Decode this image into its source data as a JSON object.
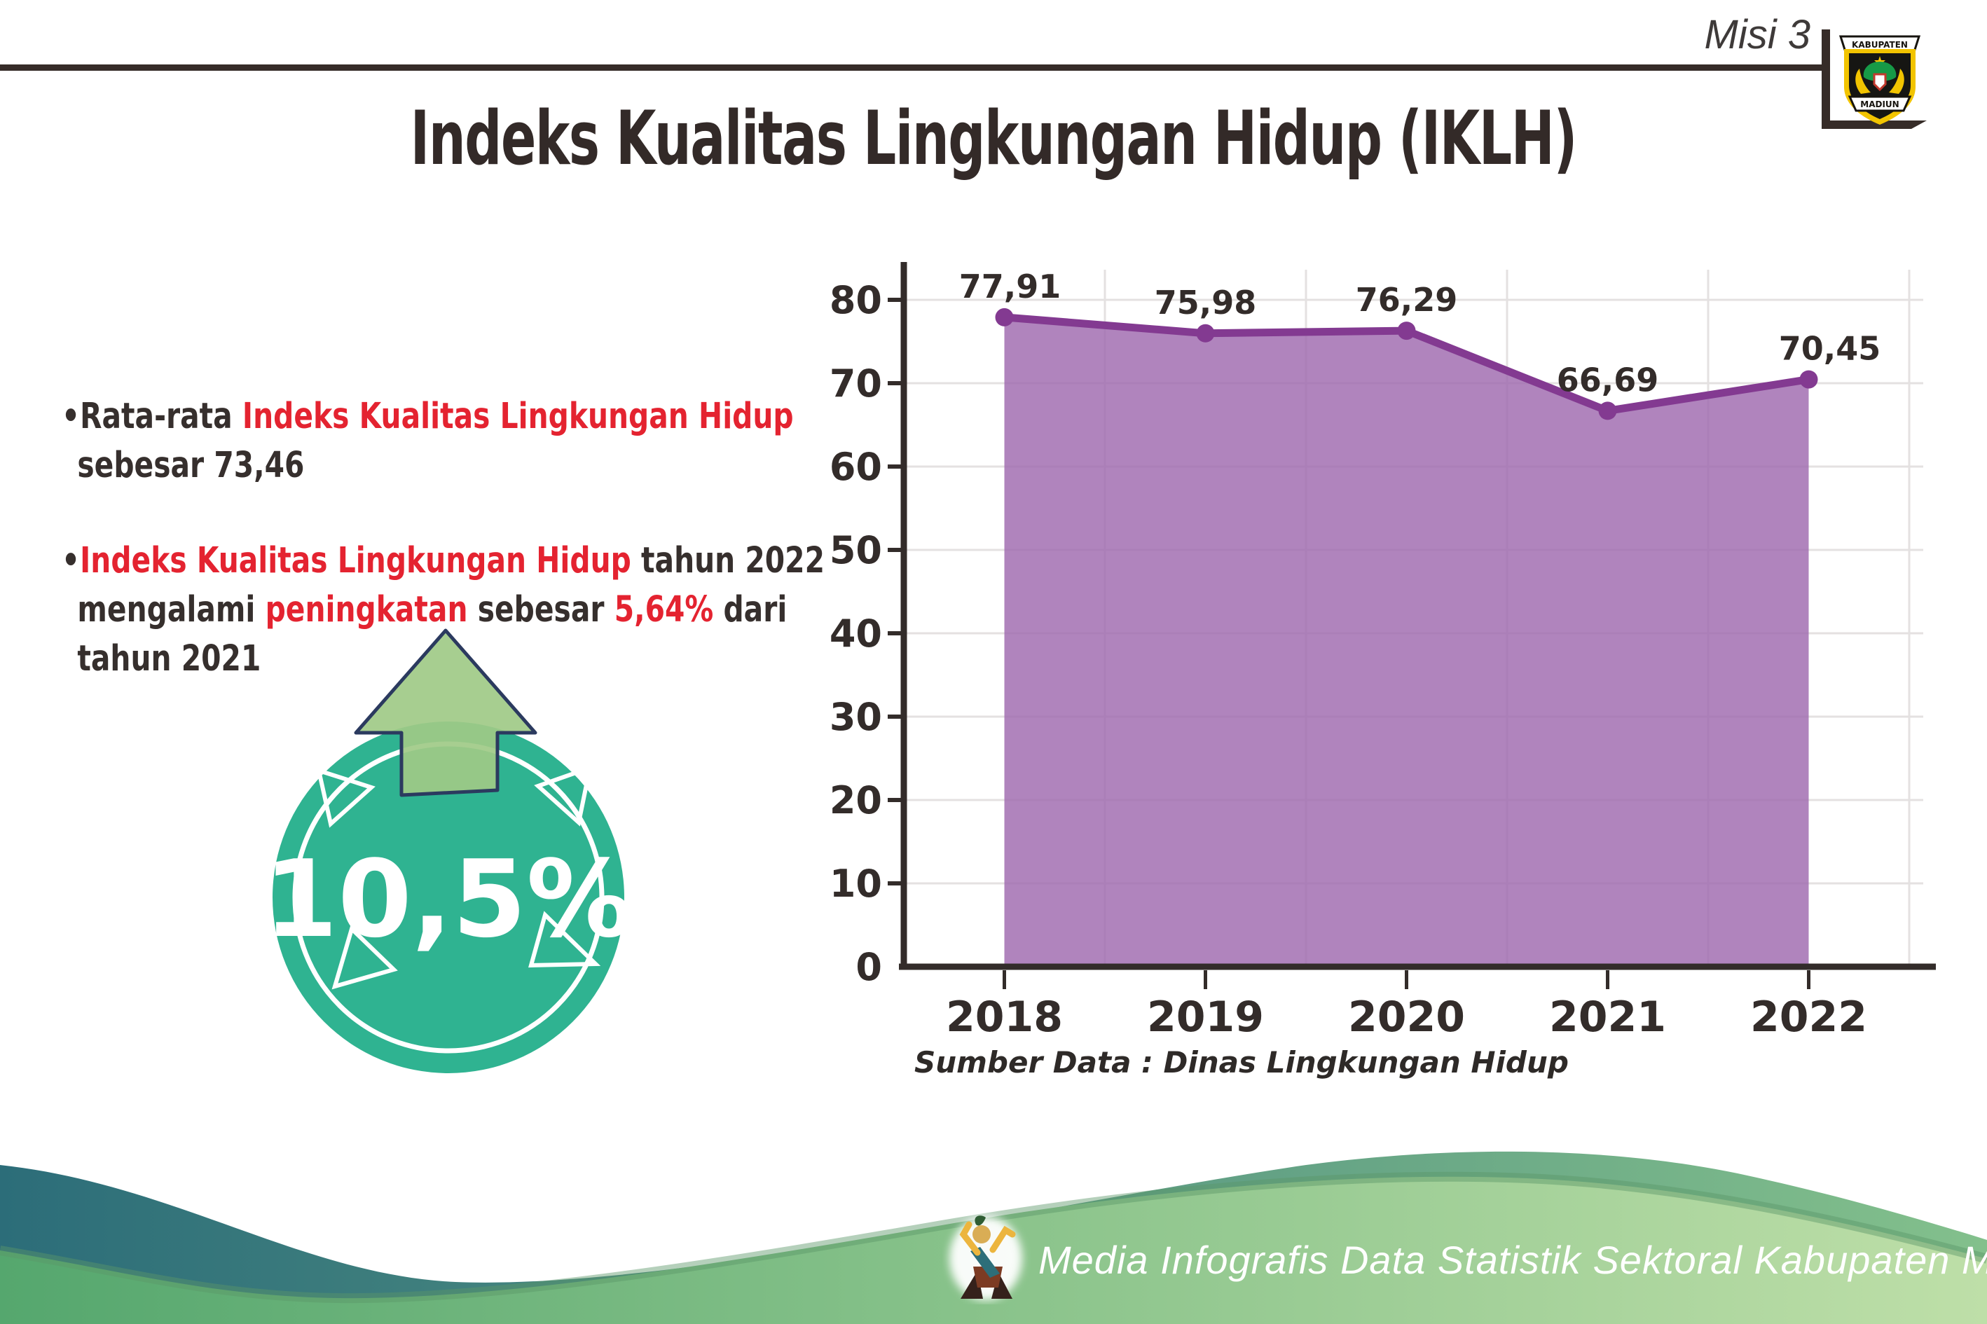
{
  "header": {
    "misi_label": "Misi 3",
    "logo": {
      "top_text": "KABUPATEN",
      "bottom_text": "MADIUN"
    }
  },
  "title": "Indeks Kualitas Lingkungan Hidup (IKLH)",
  "insights": {
    "marker": "•",
    "b1": {
      "l1_dark": "Rata-rata ",
      "l1_red": "Indeks Kualitas Lingkungan Hidup",
      "l2_dark": "sebesar 73,46"
    },
    "b2": {
      "l1_red": "Indeks Kualitas Lingkungan Hidup",
      "l1_dark": " tahun 2022",
      "l2a_dark": "mengalami ",
      "l2b_red": "peningkatan",
      "l2c_dark": " sebesar ",
      "l2d_red": "5,64%",
      "l2e_dark": " dari",
      "l3_dark": "tahun 2021"
    }
  },
  "badge": {
    "value": "10,5%",
    "direction": "up"
  },
  "chart_data": {
    "type": "area",
    "categories": [
      "2018",
      "2019",
      "2020",
      "2021",
      "2022"
    ],
    "values": [
      77.91,
      75.98,
      76.29,
      66.69,
      70.45
    ],
    "value_labels": [
      "77,91",
      "75,98",
      "76,29",
      "66,69",
      "70,45"
    ],
    "title": "",
    "xlabel": "",
    "ylabel": "",
    "ylim": [
      0,
      80
    ],
    "ytick_step": 10,
    "grid": true,
    "legend": false
  },
  "source_note": "Sumber Data : Dinas Lingkungan Hidup",
  "footer": {
    "credit": "Media Infografis Data Statistik Sektoral Kabupaten Madiun |"
  },
  "colors": {
    "text_dark": "#332c2a",
    "red": "#e42330",
    "line_purple": "#833a91",
    "fill_purple": "#9f69ae",
    "grid_line": "#e4e1e1",
    "badge_teal": "#2fb391",
    "arrow_green": "#9fca87",
    "arrow_outline": "#2b3a5f",
    "wave_teal_left": "#2c6d79",
    "wave_teal_right": "#83c08c",
    "wave_green_left": "#55a76e",
    "wave_green_right": "#bedfa8"
  }
}
